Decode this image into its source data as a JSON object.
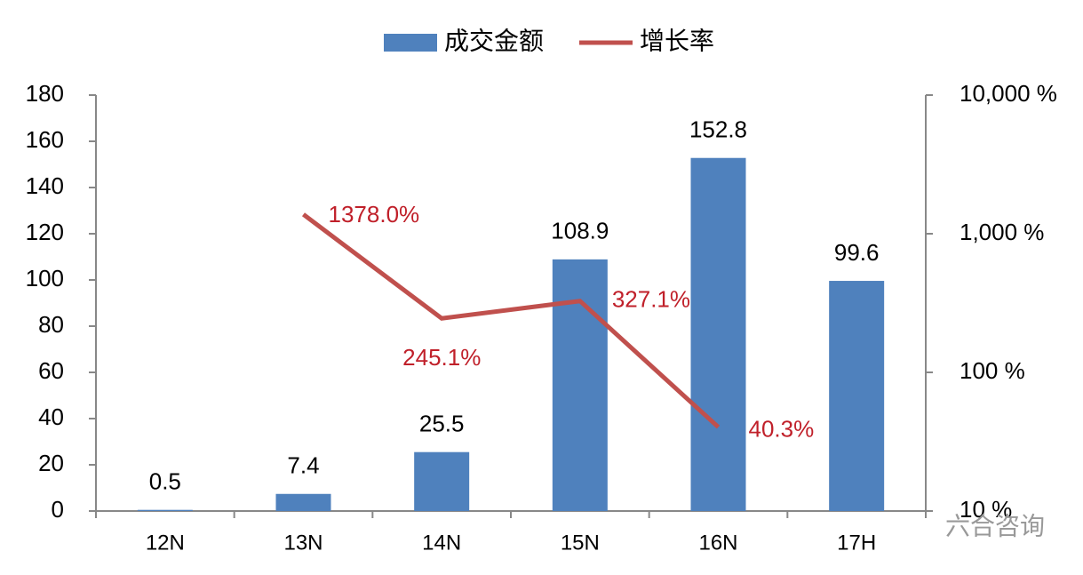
{
  "chart_data": {
    "type": "bar-line",
    "categories": [
      "12N",
      "13N",
      "14N",
      "15N",
      "16N",
      "17H"
    ],
    "series": [
      {
        "name": "成交金额",
        "type": "bar",
        "color": "#4f81bd",
        "values": [
          0.5,
          7.4,
          25.5,
          108.9,
          152.8,
          99.6
        ]
      },
      {
        "name": "增长率",
        "type": "line",
        "axis": "y2",
        "color": "#c0504d",
        "label_color": "#c0202a",
        "values": [
          null,
          1378.0,
          245.1,
          327.1,
          40.3,
          null
        ],
        "value_labels": [
          null,
          "1378.0%",
          "245.1%",
          "327.1%",
          "40.3%",
          null
        ]
      }
    ],
    "ylim": [
      0,
      180
    ],
    "yticks": [
      0,
      20,
      40,
      60,
      80,
      100,
      120,
      140,
      160,
      180
    ],
    "y2lim": [
      10,
      10000
    ],
    "y2log": true,
    "y2ticks": [
      {
        "value": 10,
        "label": "10 %"
      },
      {
        "value": 100,
        "label": "100 %"
      },
      {
        "value": 1000,
        "label": "1,000 %"
      },
      {
        "value": 10000,
        "label": "10,000 %"
      }
    ],
    "legend": "top",
    "watermark": "六合咨询"
  }
}
